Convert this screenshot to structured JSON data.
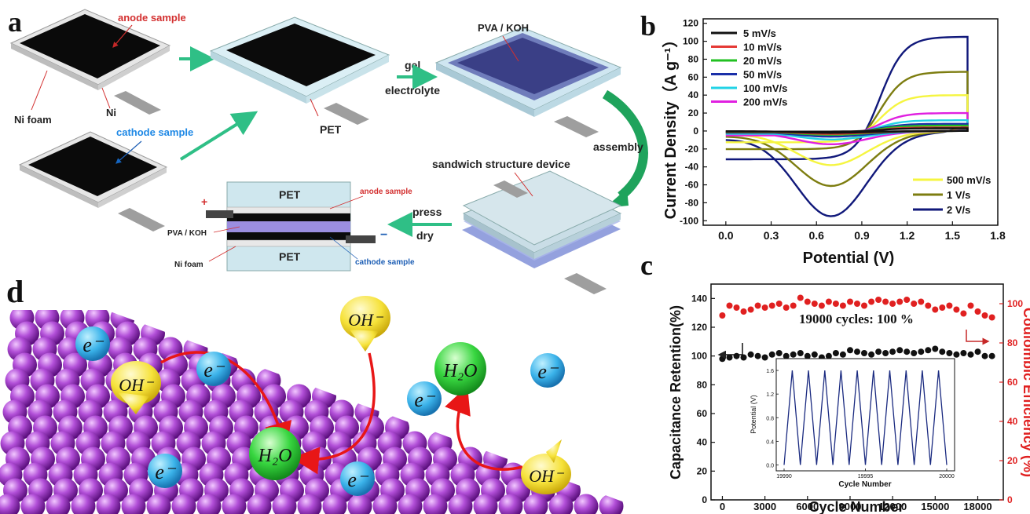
{
  "panels": {
    "a": "a",
    "b": "b",
    "c": "c",
    "d": "d"
  },
  "panel_a": {
    "anode_sample": "anode sample",
    "cathode_sample": "cathode sample",
    "ni_foam": "Ni foam",
    "ni": "Ni",
    "pet": "PET",
    "pva_koh": "PVA / KOH",
    "gel": "gel",
    "electrolyte": "electrolyte",
    "assembly": "assembly",
    "sandwich": "sandwich structure device",
    "press": "press",
    "dry": "dry",
    "plus": "+",
    "minus": "−",
    "pet_top": "PET",
    "pet_bottom": "PET",
    "anode_sample_small": "anode sample",
    "cathode_sample_small": "cathode sample",
    "pva_koh_small": "PVA / KOH",
    "ni_foam_small": "Ni foam"
  },
  "panel_d": {
    "electron": "e⁻",
    "hydroxide": "OH⁻",
    "water": "H₂O"
  },
  "chart_data": [
    {
      "type": "line",
      "panel": "b",
      "xlabel": "Potential (V)",
      "ylabel": "Current Density（A g⁻¹）",
      "xlim": [
        -0.15,
        1.8
      ],
      "ylim": [
        -105,
        125
      ],
      "xticks": [
        0.0,
        0.3,
        0.6,
        0.9,
        1.2,
        1.5,
        1.8
      ],
      "yticks": [
        -100,
        -80,
        -60,
        -40,
        -20,
        0,
        20,
        40,
        60,
        80,
        100,
        120
      ],
      "legend_top_left": true,
      "legend_bottom_right": true,
      "series": [
        {
          "name": "5 mV/s",
          "color": "#111111",
          "upper_max": 3,
          "lower_min": -2
        },
        {
          "name": "10 mV/s",
          "color": "#e53935",
          "upper_max": 4,
          "lower_min": -3
        },
        {
          "name": "20 mV/s",
          "color": "#22c022",
          "upper_max": 6,
          "lower_min": -4
        },
        {
          "name": "50 mV/s",
          "color": "#1a2fa8",
          "upper_max": 8,
          "lower_min": -6
        },
        {
          "name": "100 mV/s",
          "color": "#22d3e6",
          "upper_max": 12,
          "lower_min": -9
        },
        {
          "name": "200 mV/s",
          "color": "#e020e0",
          "upper_max": 20,
          "lower_min": -14
        },
        {
          "name": "500 mV/s",
          "color": "#f5f540",
          "upper_max": 40,
          "lower_min": -36
        },
        {
          "name": "1 V/s",
          "color": "#7d7d10",
          "upper_max": 66,
          "lower_min": -58
        },
        {
          "name": "2 V/s",
          "color": "#10187a",
          "upper_max": 105,
          "lower_min": -90
        }
      ]
    },
    {
      "type": "scatter",
      "panel": "c",
      "xlabel": "Cycle Number",
      "ylabel": "Capacitance Retention(%)",
      "ylabel_right": "Coulombic Efficiency (%)",
      "xlim": [
        -800,
        19800
      ],
      "ylim_left": [
        0,
        150
      ],
      "ylim_right": [
        0,
        110
      ],
      "xticks": [
        0,
        3000,
        6000,
        9000,
        12000,
        15000,
        18000
      ],
      "yticks_left": [
        0,
        20,
        40,
        60,
        80,
        100,
        120,
        140
      ],
      "yticks_right": [
        0,
        20,
        40,
        60,
        80,
        100
      ],
      "annotation": "19000 cycles: 100 %",
      "x": [
        0,
        500,
        1000,
        1500,
        2000,
        2500,
        3000,
        3500,
        4000,
        4500,
        5000,
        5500,
        6000,
        6500,
        7000,
        7500,
        8000,
        8500,
        9000,
        9500,
        10000,
        10500,
        11000,
        11500,
        12000,
        12500,
        13000,
        13500,
        14000,
        14500,
        15000,
        15500,
        16000,
        16500,
        17000,
        17500,
        18000,
        18500,
        19000
      ],
      "series": [
        {
          "name": "Capacitance Retention",
          "axis": "left",
          "color": "#111111",
          "values": [
            98,
            99,
            100,
            99,
            101,
            100,
            99,
            101,
            102,
            100,
            101,
            102,
            100,
            101,
            99,
            100,
            102,
            101,
            104,
            103,
            102,
            101,
            103,
            102,
            103,
            104,
            103,
            102,
            103,
            104,
            105,
            103,
            102,
            101,
            102,
            101,
            103,
            100,
            100
          ]
        },
        {
          "name": "Coulombic Efficiency",
          "axis": "right",
          "color": "#e02020",
          "values": [
            94,
            99,
            98,
            96,
            97,
            99,
            98,
            99,
            100,
            98,
            99,
            103,
            101,
            100,
            99,
            101,
            100,
            99,
            101,
            100,
            99,
            101,
            102,
            101,
            100,
            101,
            102,
            100,
            101,
            99,
            97,
            98,
            99,
            97,
            95,
            99,
            96,
            94,
            93
          ]
        }
      ]
    },
    {
      "type": "line",
      "panel": "c-inset",
      "xlabel": "Cycle Number",
      "ylabel": "Potential (V)",
      "xticks_labels": [
        "19990",
        "19995",
        "20000"
      ],
      "yticks_labels": [
        "0.0",
        "0.4",
        "0.8",
        "1.2",
        "1.6"
      ],
      "ylim": [
        -0.1,
        1.8
      ],
      "cycles": 10,
      "vmin": 0.0,
      "vmax": 1.6
    }
  ]
}
